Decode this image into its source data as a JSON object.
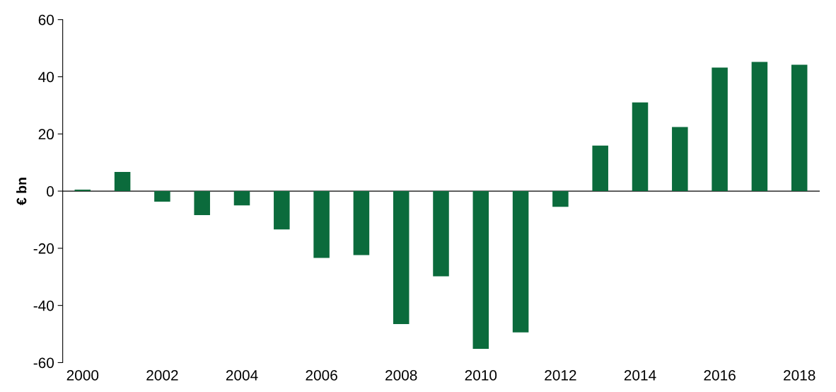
{
  "chart_data": {
    "type": "bar",
    "ylabel": "€ bn",
    "categories": [
      "2000",
      null,
      "2002",
      null,
      "2004",
      null,
      "2006",
      null,
      "2008",
      null,
      "2010",
      null,
      "2012",
      null,
      "2014",
      null,
      "2016",
      null,
      "2018"
    ],
    "values": [
      0.5,
      6.7,
      -3.7,
      -8.4,
      -5.0,
      -13.4,
      -23.4,
      -22.4,
      -46.5,
      -29.8,
      -55.2,
      -49.4,
      -5.5,
      15.9,
      31.0,
      22.4,
      43.2,
      45.2,
      44.2
    ],
    "color": "#0b6b3c",
    "ylim": [
      -60,
      60
    ],
    "yticks": [
      -60,
      -40,
      -20,
      0,
      20,
      40,
      60
    ]
  }
}
